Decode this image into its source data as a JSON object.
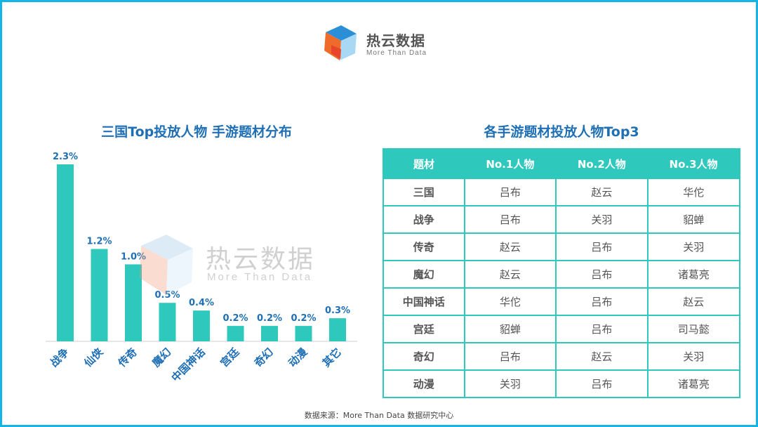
{
  "logo": {
    "name": "热云数据",
    "tagline": "More Than Data"
  },
  "left_title": "三国Top投放人物 手游题材分布",
  "right_title": "各手游题材投放人物Top3",
  "watermark": {
    "name": "热云数据",
    "tagline": "More Than Data"
  },
  "chart_data": {
    "type": "bar",
    "title": "三国Top投放人物 手游题材分布",
    "categories": [
      "战争",
      "仙侠",
      "传奇",
      "魔幻",
      "中国神话",
      "宫廷",
      "奇幻",
      "动漫",
      "其它"
    ],
    "values": [
      2.3,
      1.2,
      1.0,
      0.5,
      0.4,
      0.2,
      0.2,
      0.2,
      0.3
    ],
    "value_labels": [
      "2.3%",
      "1.2%",
      "1.0%",
      "0.5%",
      "0.4%",
      "0.2%",
      "0.2%",
      "0.2%",
      "0.3%"
    ],
    "unit": "%",
    "ylim": [
      0,
      2.3
    ],
    "grid": false,
    "legend": "none",
    "bar_color": "#2ec8bd",
    "label_color": "#1f6fb5"
  },
  "table": {
    "headers": [
      "题材",
      "No.1人物",
      "No.2人物",
      "No.3人物"
    ],
    "rows": [
      [
        "三国",
        "吕布",
        "赵云",
        "华佗"
      ],
      [
        "战争",
        "吕布",
        "关羽",
        "貂蝉"
      ],
      [
        "传奇",
        "赵云",
        "吕布",
        "关羽"
      ],
      [
        "魔幻",
        "赵云",
        "吕布",
        "诸葛亮"
      ],
      [
        "中国神话",
        "华佗",
        "吕布",
        "赵云"
      ],
      [
        "宫廷",
        "貂蝉",
        "吕布",
        "司马懿"
      ],
      [
        "奇幻",
        "吕布",
        "赵云",
        "关羽"
      ],
      [
        "动漫",
        "关羽",
        "吕布",
        "诸葛亮"
      ]
    ]
  },
  "source": "数据来源：More Than Data 数据研究中心",
  "colors": {
    "frame": "#12b5e6",
    "accent": "#2ec8bd",
    "title": "#1f6fb5"
  }
}
